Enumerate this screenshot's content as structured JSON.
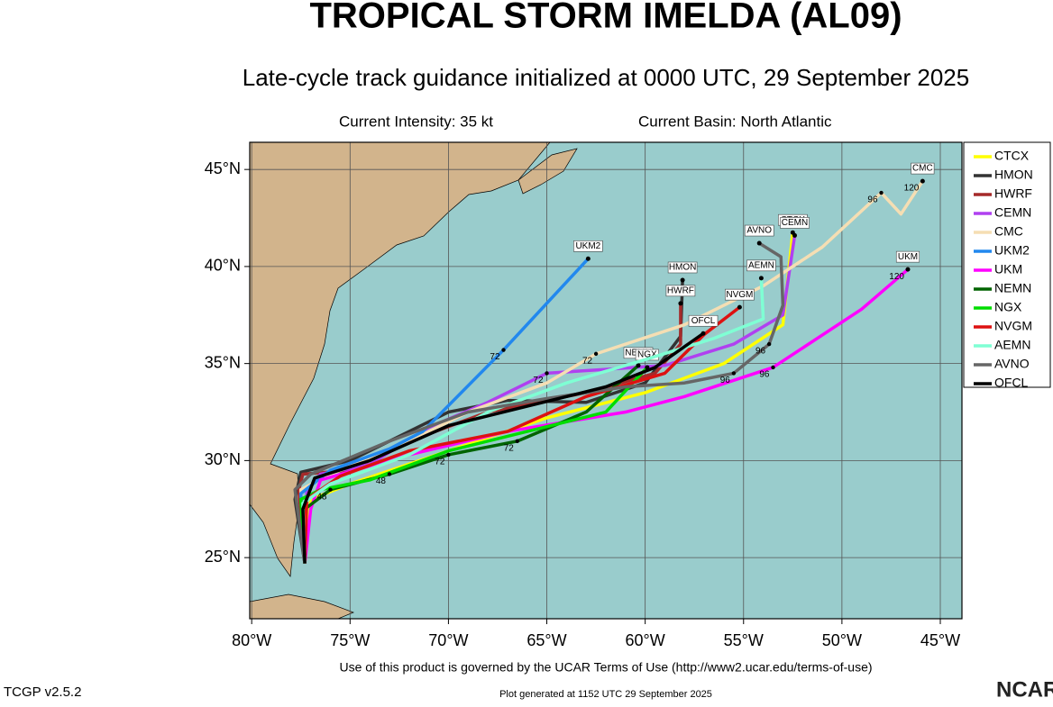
{
  "chart_data": {
    "type": "track-map",
    "title": "TROPICAL STORM IMELDA (AL09)",
    "subtitle": "Late-cycle track guidance initialized at 0000 UTC, 29 September 2025",
    "intensity_note": "Current Intensity: 35 kt",
    "basin_note": "Current Basin: North Atlantic",
    "footer_terms": "Use of this product is governed by the UCAR Terms of Use (http://www2.ucar.edu/terms-of-use)",
    "version": "TCGP v2.5.2",
    "generated": "Plot generated at 1152 UTC  29 September 2025",
    "logo": "NCAR",
    "xlim": [
      -80.1,
      -43.9
    ],
    "ylim": [
      21.85,
      46.4
    ],
    "xticks": [
      {
        "value": -80,
        "label": "80°W"
      },
      {
        "value": -75,
        "label": "75°W"
      },
      {
        "value": -70,
        "label": "70°W"
      },
      {
        "value": -65,
        "label": "65°W"
      },
      {
        "value": -60,
        "label": "60°W"
      },
      {
        "value": -55,
        "label": "55°W"
      },
      {
        "value": -50,
        "label": "50°W"
      },
      {
        "value": -45,
        "label": "45°W"
      }
    ],
    "yticks": [
      {
        "value": 25,
        "label": "25°N"
      },
      {
        "value": 30,
        "label": "30°N"
      },
      {
        "value": 35,
        "label": "35°N"
      },
      {
        "value": 40,
        "label": "40°N"
      },
      {
        "value": 45,
        "label": "45°N"
      }
    ],
    "grid": true,
    "legend": "right",
    "series": [
      {
        "name": "CTCX",
        "color": "#ffff00",
        "x": [
          -77.3,
          -77.0,
          -75.0,
          -70.0,
          -65.0,
          -60.0,
          -56.0,
          -53.0,
          -52.5
        ],
        "y": [
          24.7,
          28.0,
          28.8,
          30.5,
          32.2,
          33.5,
          35.0,
          37.0,
          41.75
        ]
      },
      {
        "name": "HMON",
        "color": "#333333",
        "x": [
          -77.3,
          -77.8,
          -77.5,
          -75.0,
          -70.0,
          -67.0,
          -63.0,
          -60.0,
          -58.2,
          -58.1
        ],
        "y": [
          24.7,
          28.0,
          29.4,
          30.0,
          32.5,
          33.1,
          33.0,
          34.0,
          36.4,
          39.3
        ]
      },
      {
        "name": "HWRF",
        "color": "#a52a2a",
        "x": [
          -77.3,
          -77.6,
          -77.4,
          -75.0,
          -72.0,
          -68.0,
          -63.0,
          -59.5,
          -58.2,
          -58.2
        ],
        "y": [
          24.7,
          28.5,
          29.3,
          29.5,
          31.0,
          32.5,
          33.5,
          34.5,
          36.0,
          38.1
        ]
      },
      {
        "name": "CEMN",
        "color": "#b040f0",
        "x": [
          -77.3,
          -77.2,
          -76.5,
          -74.0,
          -71.0,
          -68.0,
          -65.0,
          -62.0,
          -59.0,
          -55.5,
          -53.0,
          -52.4
        ],
        "y": [
          24.7,
          28.5,
          29.3,
          29.8,
          31.7,
          33.0,
          34.5,
          34.7,
          34.9,
          36.0,
          37.5,
          41.6
        ]
      },
      {
        "name": "CMC",
        "color": "#f5deb3",
        "x": [
          -77.3,
          -77.5,
          -76.0,
          -73.0,
          -69.0,
          -65.0,
          -62.5,
          -58.0,
          -54.0,
          -51.0,
          -48.0,
          -47.0,
          -45.9
        ],
        "y": [
          24.7,
          28.5,
          29.3,
          30.5,
          32.5,
          34.0,
          35.5,
          37.0,
          39.0,
          41.0,
          43.8,
          42.7,
          44.4
        ]
      },
      {
        "name": "UKM2",
        "color": "#2288ee",
        "x": [
          -77.3,
          -77.5,
          -76.0,
          -73.0,
          -71.3,
          -67.2,
          -62.9
        ],
        "y": [
          24.7,
          28.3,
          29.5,
          30.6,
          31.5,
          35.7,
          40.4
        ]
      },
      {
        "name": "UKM",
        "color": "#ff00ff",
        "x": [
          -77.3,
          -77.0,
          -76.5,
          -72.0,
          -67.0,
          -61.0,
          -58.0,
          -53.5,
          -49.0,
          -46.65
        ],
        "y": [
          24.7,
          27.5,
          29.0,
          30.3,
          31.5,
          32.5,
          33.3,
          34.8,
          37.8,
          39.85
        ]
      },
      {
        "name": "NEMN",
        "color": "#006400",
        "x": [
          -77.3,
          -77.3,
          -76.0,
          -73.0,
          -70.0,
          -66.5,
          -63.0,
          -60.35
        ],
        "y": [
          24.7,
          27.5,
          28.5,
          29.3,
          30.3,
          31.0,
          32.5,
          34.9
        ]
      },
      {
        "name": "NGX",
        "color": "#00dd00",
        "x": [
          -77.3,
          -77.5,
          -76.5,
          -74.0,
          -70.0,
          -66.0,
          -62.0,
          -59.9
        ],
        "y": [
          24.7,
          28.0,
          28.5,
          29.0,
          30.5,
          31.5,
          32.5,
          34.8
        ]
      },
      {
        "name": "NVGM",
        "color": "#dd1111",
        "x": [
          -77.3,
          -77.2,
          -75.5,
          -72.0,
          -67.0,
          -63.0,
          -59.0,
          -57.0,
          -55.2
        ],
        "y": [
          24.7,
          28.0,
          29.2,
          30.5,
          31.5,
          33.3,
          34.5,
          36.5,
          37.9
        ]
      },
      {
        "name": "AEMN",
        "color": "#7fffd4",
        "x": [
          -77.3,
          -77.4,
          -76.0,
          -72.0,
          -68.0,
          -64.0,
          -60.0,
          -56.5,
          -54.0,
          -54.1
        ],
        "y": [
          24.7,
          27.8,
          28.8,
          30.3,
          32.5,
          34.0,
          35.2,
          36.3,
          37.3,
          39.4
        ]
      },
      {
        "name": "AVNO",
        "color": "#666666",
        "x": [
          -77.3,
          -77.8,
          -77.0,
          -73.0,
          -69.0,
          -65.0,
          -61.0,
          -58.0,
          -55.5,
          -53.7,
          -53.0,
          -53.1,
          -54.2
        ],
        "y": [
          24.7,
          28.5,
          29.3,
          31.0,
          32.5,
          33.2,
          33.8,
          34.0,
          34.5,
          36.0,
          38.0,
          40.5,
          41.2
        ]
      },
      {
        "name": "OFCL",
        "color": "#000000",
        "x": [
          -77.3,
          -77.4,
          -76.8,
          -74.0,
          -70.0,
          -66.0,
          -62.0,
          -59.5,
          -57.05
        ],
        "y": [
          24.7,
          27.5,
          29.1,
          30.0,
          31.8,
          32.8,
          33.8,
          34.8,
          36.55
        ]
      }
    ],
    "hour_labels": [
      {
        "text": "120",
        "x": -45.9,
        "y": 44.4
      },
      {
        "text": "96",
        "x": -48.0,
        "y": 43.8
      },
      {
        "text": "120",
        "x": -46.65,
        "y": 39.85
      },
      {
        "text": "96",
        "x": -53.7,
        "y": 36.0
      },
      {
        "text": "96",
        "x": -53.5,
        "y": 34.8
      },
      {
        "text": "96",
        "x": -55.5,
        "y": 34.5
      },
      {
        "text": "72",
        "x": -67.2,
        "y": 35.7
      },
      {
        "text": "72",
        "x": -62.5,
        "y": 35.5
      },
      {
        "text": "72",
        "x": -65.0,
        "y": 34.5
      },
      {
        "text": "72",
        "x": -66.5,
        "y": 31.0
      },
      {
        "text": "72",
        "x": -70.0,
        "y": 30.3
      },
      {
        "text": "48",
        "x": -73.0,
        "y": 29.3
      },
      {
        "text": "48",
        "x": -76.0,
        "y": 28.5
      }
    ]
  }
}
